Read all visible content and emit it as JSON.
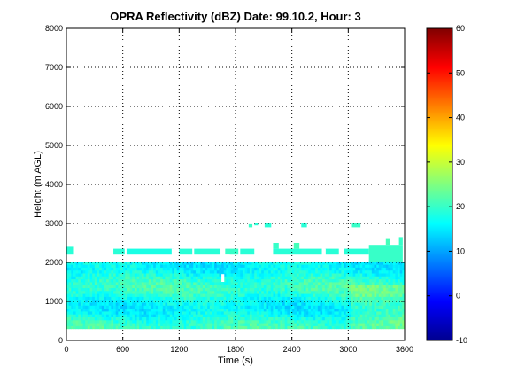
{
  "chart_data": {
    "type": "heatmap",
    "title": "OPRA Reflectivity (dBZ)  Date: 99.10.2, Hour: 3",
    "xlabel": "Time (s)",
    "ylabel": "Height (m AGL)",
    "xlim": [
      0,
      3600
    ],
    "ylim": [
      0,
      8000
    ],
    "x_ticks": [
      0,
      600,
      1200,
      1800,
      2400,
      3000,
      3600
    ],
    "y_ticks": [
      0,
      1000,
      2000,
      3000,
      4000,
      5000,
      6000,
      7000,
      8000
    ],
    "grid": true,
    "colorbar": {
      "range": [
        -10,
        60
      ],
      "ticks": [
        -10,
        0,
        10,
        20,
        30,
        40,
        50,
        60
      ],
      "colormap": "jet"
    },
    "description_values": {
      "main_layer_top_m": 2000,
      "main_layer_bottom_m": 300,
      "typical_dbz": 18,
      "layer_dbz_range": [
        12,
        26
      ]
    },
    "patches": [
      {
        "t0": 0,
        "t1": 80,
        "h0": 2200,
        "h1": 2400,
        "dbz": 19
      },
      {
        "t0": 500,
        "t1": 620,
        "h0": 2200,
        "h1": 2350,
        "dbz": 19
      },
      {
        "t0": 640,
        "t1": 1150,
        "h0": 2200,
        "h1": 2350,
        "dbz": 18
      },
      {
        "t0": 1200,
        "t1": 1340,
        "h0": 2200,
        "h1": 2350,
        "dbz": 19
      },
      {
        "t0": 1360,
        "t1": 1640,
        "h0": 2200,
        "h1": 2350,
        "dbz": 19
      },
      {
        "t0": 1690,
        "t1": 1830,
        "h0": 2200,
        "h1": 2350,
        "dbz": 20
      },
      {
        "t0": 1850,
        "t1": 2000,
        "h0": 2200,
        "h1": 2350,
        "dbz": 19
      },
      {
        "t0": 2200,
        "t1": 2260,
        "h0": 2350,
        "h1": 2500,
        "dbz": 20
      },
      {
        "t0": 2200,
        "t1": 2720,
        "h0": 2200,
        "h1": 2350,
        "dbz": 19
      },
      {
        "t0": 2420,
        "t1": 2480,
        "h0": 2350,
        "h1": 2500,
        "dbz": 21
      },
      {
        "t0": 2750,
        "t1": 2900,
        "h0": 2200,
        "h1": 2350,
        "dbz": 19
      },
      {
        "t0": 2950,
        "t1": 3220,
        "h0": 2200,
        "h1": 2350,
        "dbz": 19
      },
      {
        "t0": 3220,
        "t1": 3580,
        "h0": 2000,
        "h1": 2450,
        "dbz": 20
      },
      {
        "t0": 3400,
        "t1": 3440,
        "h0": 2450,
        "h1": 2600,
        "dbz": 21
      },
      {
        "t0": 3540,
        "t1": 3580,
        "h0": 2450,
        "h1": 2650,
        "dbz": 20
      },
      {
        "t0": 2000,
        "t1": 2040,
        "h0": 2950,
        "h1": 3000,
        "dbz": 19
      },
      {
        "t0": 2110,
        "t1": 2180,
        "h0": 2900,
        "h1": 3000,
        "dbz": 19
      },
      {
        "t0": 2500,
        "t1": 2560,
        "h0": 2900,
        "h1": 3000,
        "dbz": 19
      },
      {
        "t0": 3030,
        "t1": 3130,
        "h0": 2900,
        "h1": 3000,
        "dbz": 20
      },
      {
        "t0": 1940,
        "t1": 1980,
        "h0": 2900,
        "h1": 2980,
        "dbz": 20
      }
    ],
    "gaps": [
      {
        "t0": 1680,
        "t1": 1740,
        "h0": 2000,
        "h1": 2200
      },
      {
        "t0": 1120,
        "t1": 1180,
        "h0": 2000,
        "h1": 2350
      },
      {
        "t0": 2720,
        "t1": 2760,
        "h0": 2000,
        "h1": 2350
      },
      {
        "t0": 1650,
        "t1": 1680,
        "h0": 1500,
        "h1": 1700
      },
      {
        "t0": 2900,
        "t1": 2950,
        "h0": 2000,
        "h1": 2200
      }
    ]
  }
}
